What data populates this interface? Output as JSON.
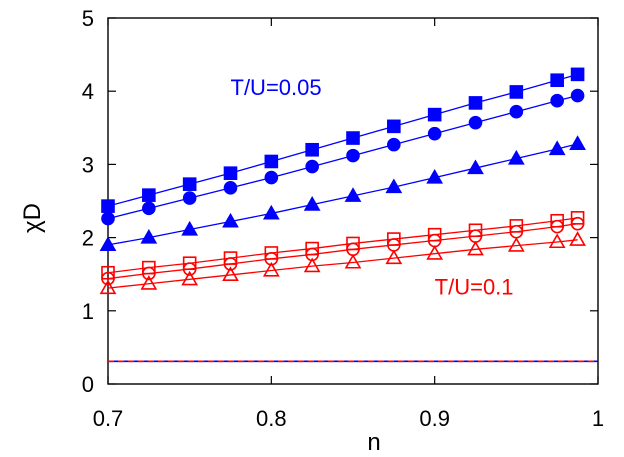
{
  "chart_data": {
    "type": "line",
    "title": "",
    "xlabel": "n",
    "ylabel": "χD",
    "xlim": [
      0.7,
      1.0
    ],
    "ylim": [
      0,
      5
    ],
    "x_ticks": [
      0.7,
      0.8,
      0.9,
      1.0
    ],
    "x_tick_labels": [
      "0.7",
      "0.8",
      "0.9",
      "1"
    ],
    "y_ticks": [
      0,
      1,
      2,
      3,
      4,
      5
    ],
    "y_tick_labels": [
      "0",
      "1",
      "2",
      "3",
      "4",
      "5"
    ],
    "grid": false,
    "legend": "none",
    "x": [
      0.7,
      0.725,
      0.75,
      0.775,
      0.8,
      0.825,
      0.85,
      0.875,
      0.9,
      0.925,
      0.95,
      0.975,
      0.9875
    ],
    "series": [
      {
        "color": "#0000ff",
        "marker": "square-filled",
        "values": [
          2.43,
          2.58,
          2.73,
          2.88,
          3.04,
          3.2,
          3.36,
          3.52,
          3.68,
          3.84,
          3.99,
          4.15,
          4.23
        ]
      },
      {
        "color": "#0000ff",
        "marker": "circle-filled",
        "values": [
          2.26,
          2.4,
          2.54,
          2.68,
          2.82,
          2.97,
          3.12,
          3.27,
          3.42,
          3.57,
          3.72,
          3.87,
          3.94
        ]
      },
      {
        "color": "#0000ff",
        "marker": "triangle-filled",
        "values": [
          1.9,
          2.0,
          2.11,
          2.22,
          2.33,
          2.45,
          2.57,
          2.69,
          2.82,
          2.95,
          3.08,
          3.21,
          3.28
        ]
      },
      {
        "color": "#ff0000",
        "marker": "square-open",
        "values": [
          1.52,
          1.59,
          1.65,
          1.72,
          1.79,
          1.85,
          1.92,
          1.98,
          2.04,
          2.1,
          2.16,
          2.23,
          2.27
        ]
      },
      {
        "color": "#ff0000",
        "marker": "circle-open",
        "values": [
          1.44,
          1.51,
          1.57,
          1.64,
          1.71,
          1.77,
          1.84,
          1.9,
          1.96,
          2.02,
          2.08,
          2.15,
          2.19
        ]
      },
      {
        "color": "#ff0000",
        "marker": "triangle-open",
        "values": [
          1.31,
          1.37,
          1.43,
          1.49,
          1.55,
          1.61,
          1.66,
          1.72,
          1.78,
          1.84,
          1.89,
          1.94,
          1.97
        ]
      }
    ],
    "reference_lines": [
      {
        "color": "#0000ff",
        "y": 0.31,
        "dash": "solid"
      },
      {
        "color": "#ff0000",
        "y": 0.31,
        "dash": "dashed"
      }
    ],
    "annotations": [
      {
        "text": "T/U=0.05",
        "color": "#0000ff",
        "x": 0.775,
        "y": 3.95
      },
      {
        "text": "T/U=0.1",
        "color": "#ff0000",
        "x": 0.9,
        "y": 1.22
      }
    ]
  }
}
